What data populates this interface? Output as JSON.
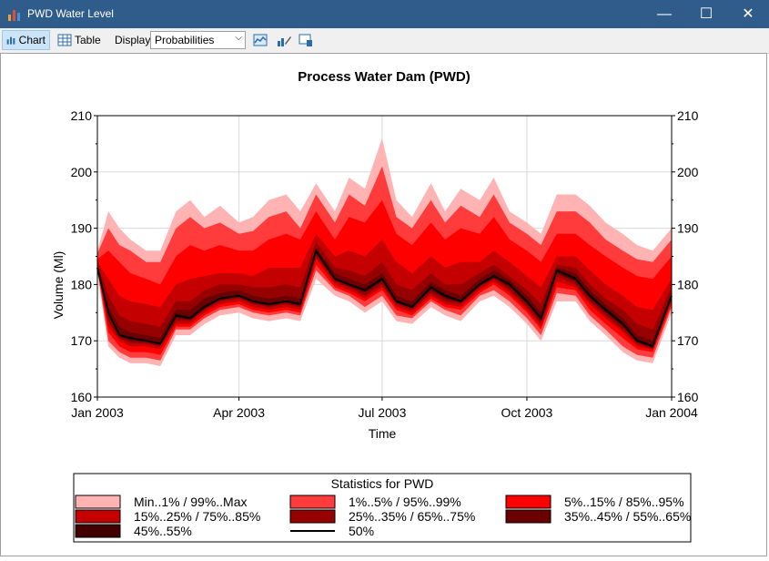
{
  "window": {
    "title": "PWD Water Level",
    "minimize": "—",
    "maximize": "☐",
    "close": "✕"
  },
  "toolbar": {
    "chart_label": "Chart",
    "table_label": "Table",
    "display_label": "Display:",
    "display_value": "Probabilities"
  },
  "colors": {
    "band_min_max": "#ffb3b3",
    "band_1_99": "#ff3b3b",
    "band_5_95": "#ff0000",
    "band_15_85": "#c40000",
    "band_25_75": "#960000",
    "band_35_65": "#6b0000",
    "band_45_55": "#420000",
    "median": "#000000"
  },
  "chart_data": {
    "type": "area",
    "title": "Process Water Dam (PWD)",
    "xlabel": "Time",
    "ylabel": "Volume (Ml)",
    "ylim": [
      160,
      210
    ],
    "yticks": [
      160,
      170,
      180,
      190,
      200,
      210
    ],
    "xlim": [
      "2003-01-01",
      "2004-01-01"
    ],
    "xticks": [
      {
        "date": "2003-01-01",
        "label": "Jan 2003"
      },
      {
        "date": "2003-04-01",
        "label": "Apr 2003"
      },
      {
        "date": "2003-07-01",
        "label": "Jul 2003"
      },
      {
        "date": "2003-10-01",
        "label": "Oct 2003"
      },
      {
        "date": "2004-01-01",
        "label": "Jan 2004"
      }
    ],
    "grid": true,
    "legend": {
      "title": "Statistics for PWD",
      "placement": "bottom",
      "entries": [
        "Min..1% / 99%..Max",
        "1%..5% / 95%..99%",
        "5%..15% / 85%..95%",
        "15%..25% / 75%..85%",
        "25%..35% / 65%..75%",
        "35%..45% / 55%..65%",
        "45%..55%",
        "50%"
      ]
    },
    "x": [
      "2003-01-01",
      "2003-01-08",
      "2003-01-15",
      "2003-01-22",
      "2003-02-01",
      "2003-02-10",
      "2003-02-20",
      "2003-03-01",
      "2003-03-10",
      "2003-03-20",
      "2003-04-01",
      "2003-04-10",
      "2003-04-20",
      "2003-05-01",
      "2003-05-10",
      "2003-05-20",
      "2003-06-01",
      "2003-06-10",
      "2003-06-20",
      "2003-07-01",
      "2003-07-10",
      "2003-07-20",
      "2003-08-01",
      "2003-08-10",
      "2003-08-20",
      "2003-09-01",
      "2003-09-10",
      "2003-09-20",
      "2003-10-01",
      "2003-10-10",
      "2003-10-20",
      "2003-11-01",
      "2003-11-10",
      "2003-11-20",
      "2003-12-01",
      "2003-12-10",
      "2003-12-20",
      "2004-01-01"
    ],
    "median": [
      183,
      175,
      171,
      170.5,
      170,
      169.5,
      174.5,
      174,
      176,
      177.5,
      178,
      177,
      176.5,
      177,
      176.5,
      186,
      181,
      180,
      179,
      181,
      177,
      176,
      179.5,
      178,
      177,
      180,
      181.5,
      180,
      177,
      174,
      182.5,
      181,
      178,
      175.5,
      173,
      170,
      169,
      178
    ],
    "series": [
      {
        "name": "Min..1% / 99%..Max",
        "low": [
          182,
          169,
          167,
          166,
          166,
          165.5,
          171,
          171,
          173,
          174.5,
          175,
          174,
          173.5,
          174,
          173.5,
          181,
          178,
          177,
          175,
          177,
          173.5,
          173,
          176,
          174.5,
          173.5,
          177,
          178,
          176,
          173,
          170,
          177,
          177,
          173.5,
          171,
          168,
          166.5,
          166,
          175
        ],
        "high": [
          186,
          193,
          190,
          188,
          186,
          186,
          193,
          195,
          192,
          194,
          191,
          192,
          195,
          196,
          193,
          198,
          193,
          199,
          197,
          206,
          195,
          192,
          198,
          193,
          197,
          195,
          199,
          193,
          191,
          189,
          196,
          196,
          194,
          191,
          189,
          187,
          186,
          190
        ]
      },
      {
        "name": "1%..5% / 95%..99%",
        "low": [
          182.5,
          170,
          168,
          167,
          167,
          166.5,
          172,
          172,
          174,
          175.5,
          176,
          175,
          174.5,
          175,
          174.5,
          182.5,
          179,
          178,
          176,
          178,
          174.5,
          174,
          177,
          175.5,
          174.5,
          178,
          179,
          177,
          174,
          171,
          178.5,
          178,
          174.5,
          172,
          169,
          167.5,
          167,
          176
        ],
        "high": [
          185.5,
          190,
          187,
          186,
          184,
          184,
          190,
          192,
          190,
          191,
          189,
          189.5,
          192,
          193,
          190,
          196,
          191,
          196,
          194,
          201,
          192,
          190,
          195,
          191,
          194,
          192,
          196,
          191,
          189,
          187,
          193,
          193,
          191,
          188,
          186,
          184.5,
          184,
          188
        ]
      },
      {
        "name": "5%..15% / 85%..95%",
        "low": [
          183,
          171.5,
          169,
          168,
          168,
          167.5,
          172.5,
          172.5,
          174.5,
          176,
          176.5,
          175.5,
          175,
          175.5,
          175,
          183.5,
          179.5,
          178.5,
          177,
          179,
          175.5,
          174.5,
          177.5,
          176,
          175.5,
          178.5,
          180,
          178,
          175,
          172,
          179.5,
          179,
          175.5,
          173,
          170.5,
          168.5,
          168,
          176.5
        ],
        "high": [
          184.5,
          186,
          184,
          182,
          181,
          180,
          185,
          187,
          186,
          187,
          186,
          186,
          188,
          189,
          188,
          193,
          188,
          192,
          191,
          195,
          189,
          187,
          191,
          188,
          190,
          189,
          192,
          188,
          186,
          184,
          189,
          189,
          187,
          185,
          183,
          181.5,
          181,
          185
        ]
      },
      {
        "name": "15%..25% / 75%..85%",
        "low": [
          183,
          172.5,
          170,
          169,
          169,
          168.5,
          173,
          173,
          175,
          176.5,
          177,
          176,
          175.5,
          176,
          175.5,
          184.5,
          180,
          179,
          177.5,
          179.5,
          176,
          175,
          178,
          176.5,
          176,
          179,
          180.5,
          178.5,
          175.5,
          172.5,
          180.5,
          179.5,
          176.5,
          174,
          171.5,
          169,
          168.5,
          177
        ],
        "high": [
          184,
          181,
          178,
          177,
          176.5,
          176,
          180,
          181,
          181.5,
          182,
          182,
          181.5,
          183,
          183,
          183,
          189,
          185,
          186,
          185,
          188,
          184,
          182,
          185,
          183,
          184,
          184,
          186,
          184,
          181.5,
          179.5,
          185,
          185,
          182.5,
          180,
          178,
          176,
          175.5,
          181
        ]
      },
      {
        "name": "25%..35% / 65%..75%",
        "low": [
          183,
          173.5,
          170.5,
          169.5,
          169.5,
          169,
          173.5,
          173.5,
          175.5,
          177,
          177.5,
          176.5,
          176,
          176.5,
          176,
          185,
          180.5,
          179.5,
          178,
          180,
          176.5,
          175.5,
          178.5,
          177,
          176.5,
          179.5,
          181,
          179,
          176,
          173,
          181.5,
          180,
          177,
          174.5,
          172,
          169.5,
          168.5,
          177.5
        ],
        "high": [
          183.5,
          178,
          174.5,
          173.5,
          173,
          172.5,
          177,
          177,
          179,
          180,
          180,
          179.5,
          179.5,
          180,
          179.5,
          187.5,
          183,
          182.5,
          181.5,
          184,
          180,
          179,
          182,
          180,
          180,
          182,
          183.5,
          181.5,
          179,
          176.5,
          183.5,
          183,
          180,
          177.5,
          175.5,
          173,
          172,
          179.5
        ]
      },
      {
        "name": "35%..45% / 55%..65%",
        "low": [
          183,
          174.5,
          170.8,
          170,
          169.8,
          169.2,
          174,
          173.8,
          175.8,
          177.3,
          177.8,
          176.8,
          176.2,
          176.8,
          176.2,
          185.5,
          180.8,
          179.8,
          178.5,
          180.5,
          176.8,
          175.8,
          179,
          177.5,
          176.8,
          179.8,
          181.2,
          179.5,
          176.5,
          173.5,
          182,
          180.5,
          177.5,
          175,
          172.5,
          169.8,
          168.8,
          177.8
        ],
        "high": [
          183.2,
          176,
          172.5,
          171.5,
          171,
          170.5,
          175.5,
          175.5,
          177.5,
          178.5,
          179,
          178,
          177.5,
          178,
          177.5,
          186.5,
          182,
          181,
          180,
          182,
          178,
          177,
          180.5,
          179,
          178,
          181,
          182.5,
          180.8,
          178,
          175,
          183,
          182,
          179,
          176.5,
          174,
          171,
          170,
          178.5
        ]
      },
      {
        "name": "45%..55%",
        "low": [
          183,
          174.8,
          170.9,
          170.3,
          169.9,
          169.3,
          174.3,
          173.9,
          175.9,
          177.4,
          177.9,
          176.9,
          176.4,
          176.9,
          176.4,
          185.8,
          180.9,
          179.9,
          178.8,
          180.8,
          176.9,
          175.9,
          179.3,
          177.8,
          176.9,
          179.9,
          181.4,
          179.8,
          176.8,
          173.8,
          182.3,
          180.8,
          177.8,
          175.3,
          172.8,
          169.9,
          168.9,
          177.9
        ],
        "high": [
          183,
          175.3,
          171.2,
          170.7,
          170.2,
          169.7,
          174.8,
          174.3,
          176.3,
          177.7,
          178.2,
          177.2,
          176.7,
          177.2,
          176.7,
          186.2,
          181.2,
          180.2,
          179.3,
          181.3,
          177.3,
          176.3,
          179.8,
          178.3,
          177.3,
          180.3,
          181.7,
          180.3,
          177.3,
          174.3,
          182.7,
          181.3,
          178.3,
          175.8,
          173.3,
          170.3,
          169.3,
          178.3
        ]
      }
    ]
  }
}
